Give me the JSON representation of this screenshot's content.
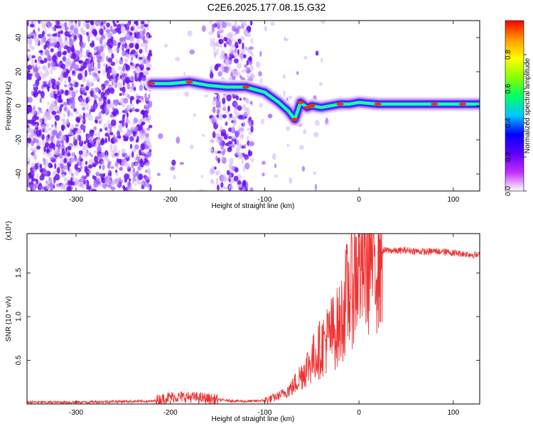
{
  "title": "C2E6.2025.177.08.15.G32",
  "colors": {
    "snr_line": "#ee3333",
    "colormap": [
      "#ffffff",
      "#c02cff",
      "#5a00ff",
      "#0000ff",
      "#00c8ff",
      "#00ff66",
      "#88ff00",
      "#ffff00",
      "#ff9900",
      "#ff0000"
    ]
  },
  "chart_data": [
    {
      "type": "heatmap",
      "xlabel": "Height of straight line (km)",
      "ylabel": "Frequency (Hz)",
      "xlim": [
        -352,
        128
      ],
      "ylim": [
        -50,
        50
      ],
      "x_ticks": [
        -300,
        -200,
        -100,
        0,
        100
      ],
      "y_ticks": [
        -40,
        -20,
        0,
        20,
        40
      ],
      "ridge": {
        "x": [
          -220,
          -200,
          -180,
          -160,
          -140,
          -120,
          -100,
          -85,
          -75,
          -68,
          -62,
          -55,
          -50,
          -40,
          -30,
          -20,
          -10,
          0,
          20,
          50,
          80,
          110,
          128
        ],
        "y": [
          13,
          13,
          14,
          12,
          11,
          11,
          8,
          2,
          -3,
          -8,
          2,
          -1,
          0,
          -1,
          0,
          1,
          1,
          2,
          1,
          1,
          1,
          1,
          1
        ]
      },
      "colorbar": {
        "label": "Normalized spectral amplitude",
        "range": [
          0.0,
          1.0
        ],
        "ticks": [
          0.0,
          0.2,
          0.4,
          0.6,
          0.8
        ],
        "tick_labels": [
          "0.0",
          "0.2",
          "0.4",
          "0.6",
          "0.8"
        ]
      }
    },
    {
      "type": "line",
      "xlabel": "Height of straight line (km)",
      "ylabel": "SNR (10 * v/v)",
      "y_multiplier": "(x10⁴)",
      "xlim": [
        -352,
        128
      ],
      "ylim": [
        0,
        1.95
      ],
      "x_ticks": [
        -300,
        -200,
        -100,
        0,
        100
      ],
      "y_ticks": [
        0.5,
        1.0,
        1.5
      ],
      "y_tick_labels": [
        "0.5",
        "1.0",
        "1.5"
      ],
      "series": [
        {
          "x": [
            -352,
            -300,
            -250,
            -220,
            -200,
            -180,
            -160,
            -140,
            -120,
            -100,
            -90,
            -80,
            -70,
            -60,
            -50,
            -40,
            -30,
            -20,
            -15,
            -10,
            -5,
            0,
            10,
            20,
            30,
            40,
            50,
            60,
            70,
            80,
            90,
            100,
            110,
            120,
            128
          ],
          "y": [
            0.02,
            0.02,
            0.03,
            0.03,
            0.08,
            0.08,
            0.06,
            0.04,
            0.03,
            0.04,
            0.07,
            0.12,
            0.2,
            0.35,
            0.5,
            0.65,
            0.8,
            0.9,
            1.15,
            1.3,
            1.45,
            1.6,
            1.72,
            1.74,
            1.76,
            1.75,
            1.76,
            1.75,
            1.74,
            1.75,
            1.74,
            1.73,
            1.72,
            1.71,
            1.7
          ]
        }
      ]
    }
  ]
}
